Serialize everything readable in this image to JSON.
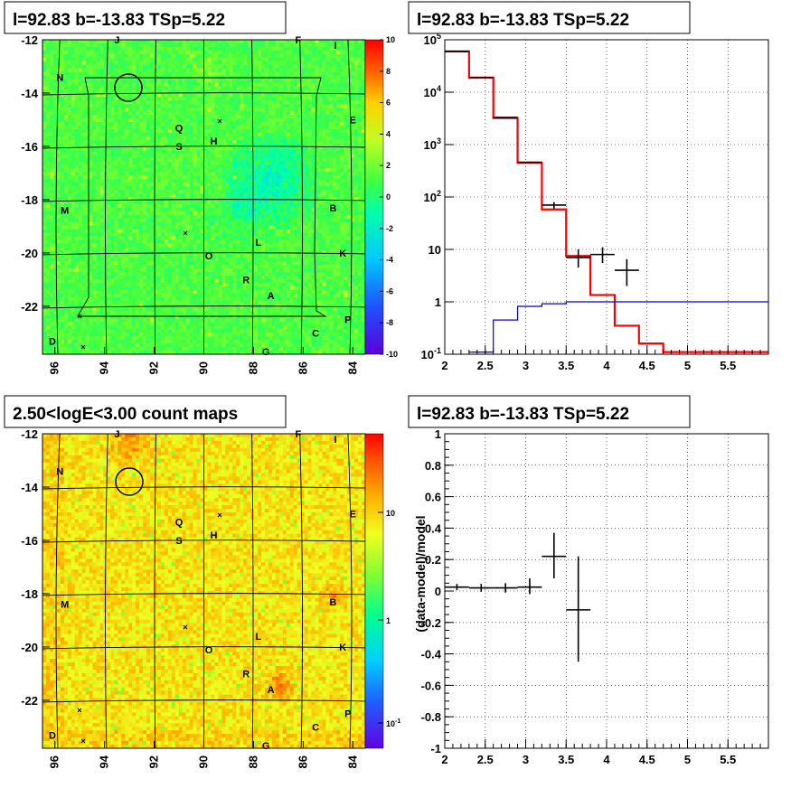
{
  "panels": {
    "tl_title": "l=92.83 b=-13.83 TSp=5.22",
    "tr_title": "l=92.83 b=-13.83 TSp=5.22",
    "bl_title": "2.50<logE<3.00 count maps",
    "br_title": "l=92.83 b=-13.83 TSp=5.22",
    "br_ylabel": "(data-model)/model"
  },
  "colors": {
    "data": "#000000",
    "model_total": "#ff0000",
    "model_source": "#0000cc",
    "grid": "#000000"
  },
  "chart_data": [
    {
      "type": "heatmap",
      "name": "residual significance map",
      "x_range": [
        96.5,
        83.5
      ],
      "y_range": [
        -23.8,
        -12
      ],
      "x_ticks": [
        "96",
        "94",
        "92",
        "90",
        "88",
        "86",
        "84"
      ],
      "y_ticks": [
        "-12",
        "-14",
        "-16",
        "-18",
        "-20",
        "-22"
      ],
      "colorbar_ticks": [
        "10",
        "8",
        "6",
        "4",
        "2",
        "0",
        "-2",
        "-4",
        "-6",
        "-8",
        "-10"
      ],
      "colorbar_range": [
        -10,
        10
      ],
      "source_labels": [
        {
          "label": "J",
          "x": 93.5,
          "y": -12.0
        },
        {
          "label": "F",
          "x": 86.2,
          "y": -12.0
        },
        {
          "label": "I",
          "x": 84.7,
          "y": -12.2
        },
        {
          "label": "N",
          "x": 95.8,
          "y": -13.4
        },
        {
          "label": "Q",
          "x": 91.0,
          "y": -15.3
        },
        {
          "label": "E",
          "x": 84.0,
          "y": -15.0
        },
        {
          "label": "S",
          "x": 91.0,
          "y": -16.0
        },
        {
          "label": "H",
          "x": 89.6,
          "y": -15.8
        },
        {
          "label": "M",
          "x": 95.6,
          "y": -18.4
        },
        {
          "label": "B",
          "x": 84.8,
          "y": -18.3
        },
        {
          "label": "L",
          "x": 87.8,
          "y": -19.6
        },
        {
          "label": "K",
          "x": 84.4,
          "y": -20.0
        },
        {
          "label": "O",
          "x": 89.8,
          "y": -20.1
        },
        {
          "label": "R",
          "x": 88.3,
          "y": -21.0
        },
        {
          "label": "A",
          "x": 87.3,
          "y": -21.6
        },
        {
          "label": "P",
          "x": 84.2,
          "y": -22.5
        },
        {
          "label": "C",
          "x": 85.5,
          "y": -23.0
        },
        {
          "label": "D",
          "x": 96.1,
          "y": -23.3
        },
        {
          "label": "G",
          "x": 87.5,
          "y": -23.7
        }
      ]
    },
    {
      "type": "line",
      "name": "counts spectrum",
      "x_range": [
        2,
        6
      ],
      "y_range": [
        0.1,
        100000
      ],
      "y_scale": "log",
      "x_ticks": [
        "2",
        "2.5",
        "3",
        "3.5",
        "4",
        "4.5",
        "5",
        "5.5"
      ],
      "y_ticks": [
        "10^-1",
        "1",
        "10",
        "10^2",
        "10^3",
        "10^4",
        "10^5"
      ],
      "grid": true,
      "model_total_steps": [
        {
          "x0": 2.0,
          "x1": 2.3,
          "y": 60000
        },
        {
          "x0": 2.3,
          "x1": 2.6,
          "y": 19000
        },
        {
          "x0": 2.6,
          "x1": 2.9,
          "y": 3200
        },
        {
          "x0": 2.9,
          "x1": 3.2,
          "y": 450
        },
        {
          "x0": 3.2,
          "x1": 3.5,
          "y": 58
        },
        {
          "x0": 3.5,
          "x1": 3.8,
          "y": 7.5
        },
        {
          "x0": 3.8,
          "x1": 4.1,
          "y": 1.35
        },
        {
          "x0": 4.1,
          "x1": 4.4,
          "y": 0.35
        },
        {
          "x0": 4.4,
          "x1": 4.7,
          "y": 0.16
        },
        {
          "x0": 4.7,
          "x1": 6.0,
          "y": 0.11
        }
      ],
      "model_source_steps": [
        {
          "x0": 2.3,
          "x1": 2.6,
          "y": 0.11
        },
        {
          "x0": 2.6,
          "x1": 2.9,
          "y": 0.45
        },
        {
          "x0": 2.9,
          "x1": 3.2,
          "y": 0.82
        },
        {
          "x0": 3.2,
          "x1": 3.5,
          "y": 0.92
        },
        {
          "x0": 3.5,
          "x1": 6.0,
          "y": 1.0
        }
      ],
      "data_points": [
        {
          "x": 2.15,
          "y": 60000,
          "xerr": 0.15,
          "ylo": 59800,
          "yhi": 60300
        },
        {
          "x": 2.45,
          "y": 19000,
          "xerr": 0.15,
          "ylo": 18900,
          "yhi": 19200
        },
        {
          "x": 2.75,
          "y": 3300,
          "xerr": 0.15,
          "ylo": 3250,
          "yhi": 3350
        },
        {
          "x": 3.05,
          "y": 460,
          "xerr": 0.15,
          "ylo": 445,
          "yhi": 475
        },
        {
          "x": 3.35,
          "y": 70,
          "xerr": 0.15,
          "ylo": 60,
          "yhi": 80
        },
        {
          "x": 3.65,
          "y": 7,
          "xerr": 0.15,
          "ylo": 4.5,
          "yhi": 10
        },
        {
          "x": 3.95,
          "y": 8,
          "xerr": 0.15,
          "ylo": 5.5,
          "yhi": 11
        },
        {
          "x": 4.25,
          "y": 4,
          "xerr": 0.15,
          "ylo": 2.0,
          "yhi": 6.5
        }
      ]
    },
    {
      "type": "heatmap",
      "name": "count map",
      "x_range": [
        96.5,
        83.5
      ],
      "y_range": [
        -23.8,
        -12
      ],
      "x_ticks": [
        "96",
        "94",
        "92",
        "90",
        "88",
        "86",
        "84"
      ],
      "y_ticks": [
        "-12",
        "-14",
        "-16",
        "-18",
        "-20",
        "-22"
      ],
      "colorbar_ticks": [
        "10",
        "1",
        "10^-1"
      ],
      "colorbar_scale": "log"
    },
    {
      "type": "scatter",
      "name": "residuals",
      "x_range": [
        2,
        6
      ],
      "y_range": [
        -1,
        1
      ],
      "x_ticks": [
        "2",
        "2.5",
        "3",
        "3.5",
        "4",
        "4.5",
        "5",
        "5.5"
      ],
      "y_ticks": [
        "1",
        "0.8",
        "0.6",
        "0.4",
        "0.2",
        "0",
        "-0.2",
        "-0.4",
        "-0.6",
        "-0.8",
        "-1"
      ],
      "ylabel": "(data-model)/model",
      "grid": true,
      "points": [
        {
          "x": 2.15,
          "y": 0.025,
          "xerr": 0.15,
          "ylo": 0.005,
          "yhi": 0.045
        },
        {
          "x": 2.45,
          "y": 0.02,
          "xerr": 0.15,
          "ylo": -0.005,
          "yhi": 0.045
        },
        {
          "x": 2.75,
          "y": 0.02,
          "xerr": 0.15,
          "ylo": -0.01,
          "yhi": 0.05
        },
        {
          "x": 3.05,
          "y": 0.025,
          "xerr": 0.15,
          "ylo": -0.02,
          "yhi": 0.08
        },
        {
          "x": 3.35,
          "y": 0.22,
          "xerr": 0.15,
          "ylo": 0.08,
          "yhi": 0.37
        },
        {
          "x": 3.65,
          "y": -0.12,
          "xerr": 0.15,
          "ylo": -0.45,
          "yhi": 0.22
        }
      ]
    }
  ]
}
